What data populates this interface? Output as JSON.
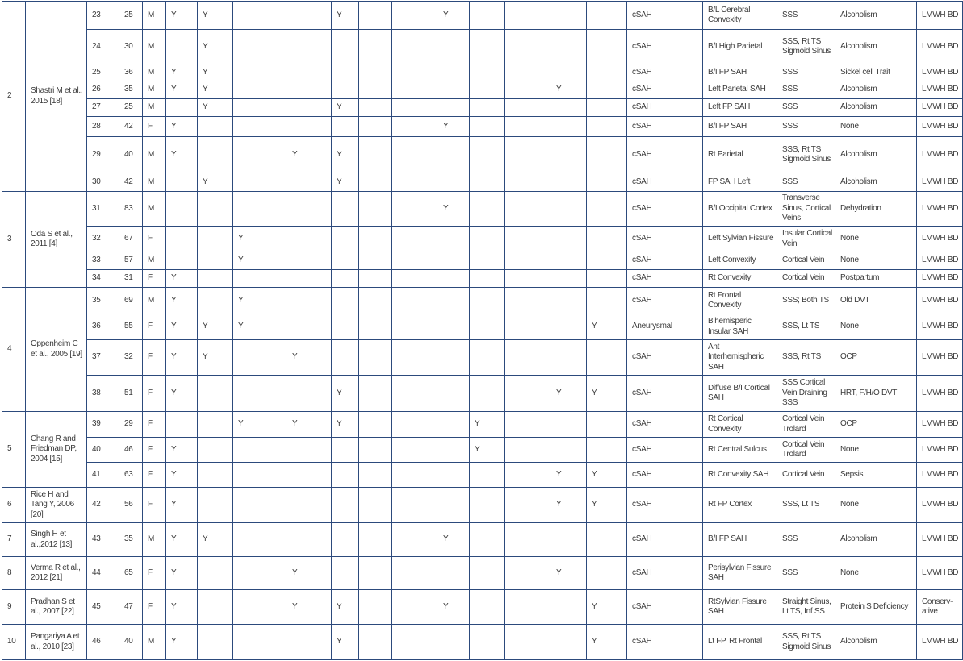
{
  "colors": {
    "border": "#2c4a7c",
    "text": "#3a3a3a"
  },
  "groups": [
    {
      "no": "2",
      "study": "Shastri M et al., 2015 [18]",
      "cases": [
        {
          "case": "23",
          "age": "25",
          "sex": "M",
          "marks": [
            "Y",
            "Y",
            "",
            "",
            "Y",
            "",
            "",
            "Y",
            "",
            "",
            "",
            ""
          ],
          "type": "cSAH",
          "location": "B/L Cerebral Convexity",
          "sinus": "SSS",
          "risk": "Alcoholism",
          "treatment": "LMWH BD"
        },
        {
          "case": "24",
          "age": "30",
          "sex": "M",
          "marks": [
            "",
            "Y",
            "",
            "",
            "",
            "",
            "",
            "",
            "",
            "",
            "",
            ""
          ],
          "type": "cSAH",
          "location": "B/I High Parietal",
          "sinus": "SSS, Rt TS Sigmoid Sinus",
          "risk": "Alcoholism",
          "treatment": "LMWH BD"
        },
        {
          "case": "25",
          "age": "36",
          "sex": "M",
          "marks": [
            "Y",
            "Y",
            "",
            "",
            "",
            "",
            "",
            "",
            "",
            "",
            "",
            ""
          ],
          "type": "cSAH",
          "location": "B/I FP SAH",
          "sinus": "SSS",
          "risk": "Sickel cell Trait",
          "treatment": "LMWH BD"
        },
        {
          "case": "26",
          "age": "35",
          "sex": "M",
          "marks": [
            "Y",
            "Y",
            "",
            "",
            "",
            "",
            "",
            "",
            "",
            "",
            "Y",
            ""
          ],
          "type": "cSAH",
          "location": "Left Parietal SAH",
          "sinus": "SSS",
          "risk": "Alcoholism",
          "treatment": "LMWH BD"
        },
        {
          "case": "27",
          "age": "25",
          "sex": "M",
          "marks": [
            "",
            "Y",
            "",
            "",
            "Y",
            "",
            "",
            "",
            "",
            "",
            "",
            ""
          ],
          "type": "cSAH",
          "location": "Left FP SAH",
          "sinus": "SSS",
          "risk": "Alcoholism",
          "treatment": "LMWH BD"
        },
        {
          "case": "28",
          "age": "42",
          "sex": "F",
          "marks": [
            "Y",
            "",
            "",
            "",
            "",
            "",
            "",
            "Y",
            "",
            "",
            "",
            ""
          ],
          "type": "cSAH",
          "location": "B/I FP SAH",
          "sinus": "SSS",
          "risk": "None",
          "treatment": "LMWH BD"
        },
        {
          "case": "29",
          "age": "40",
          "sex": "M",
          "marks": [
            "Y",
            "",
            "",
            "Y",
            "Y",
            "",
            "",
            "",
            "",
            "",
            "",
            ""
          ],
          "type": "cSAH",
          "location": "Rt Parietal",
          "sinus": "SSS, Rt TS Sigmoid Sinus",
          "risk": "Alcoholism",
          "treatment": "LMWH BD"
        },
        {
          "case": "30",
          "age": "42",
          "sex": "M",
          "marks": [
            "",
            "Y",
            "",
            "",
            "Y",
            "",
            "",
            "",
            "",
            "",
            "",
            ""
          ],
          "type": "cSAH",
          "location": "FP SAH Left",
          "sinus": "SSS",
          "risk": "Alcoholism",
          "treatment": "LMWH BD"
        }
      ]
    },
    {
      "no": "3",
      "study": "Oda S et al., 2011 [4]",
      "cases": [
        {
          "case": "31",
          "age": "83",
          "sex": "M",
          "marks": [
            "",
            "",
            "",
            "",
            "",
            "",
            "",
            "Y",
            "",
            "",
            "",
            ""
          ],
          "type": "cSAH",
          "location": "B/I Occipital Cortex",
          "sinus": "Transverse Sinus, Cortical Veins",
          "risk": "Dehydration",
          "treatment": "LMWH BD"
        },
        {
          "case": "32",
          "age": "67",
          "sex": "F",
          "marks": [
            "",
            "",
            "Y",
            "",
            "",
            "",
            "",
            "",
            "",
            "",
            "",
            ""
          ],
          "type": "cSAH",
          "location": "Left Sylvian Fissure",
          "sinus": "Insular Cortical Vein",
          "risk": "None",
          "treatment": "LMWH BD"
        },
        {
          "case": "33",
          "age": "57",
          "sex": "M",
          "marks": [
            "",
            "",
            "Y",
            "",
            "",
            "",
            "",
            "",
            "",
            "",
            "",
            ""
          ],
          "type": "cSAH",
          "location": "Left Convexity",
          "sinus": "Cortical Vein",
          "risk": "None",
          "treatment": "LMWH BD"
        },
        {
          "case": "34",
          "age": "31",
          "sex": "F",
          "marks": [
            "Y",
            "",
            "",
            "",
            "",
            "",
            "",
            "",
            "",
            "",
            "",
            ""
          ],
          "type": "cSAH",
          "location": "Rt Convexity",
          "sinus": "Cortical Vein",
          "risk": "Postpartum",
          "treatment": "LMWH BD"
        }
      ]
    },
    {
      "no": "4",
      "study": "Oppenheim C et al., 2005 [19]",
      "cases": [
        {
          "case": "35",
          "age": "69",
          "sex": "M",
          "marks": [
            "Y",
            "",
            "Y",
            "",
            "",
            "",
            "",
            "",
            "",
            "",
            "",
            ""
          ],
          "type": "cSAH",
          "location": "Rt Frontal Convexity",
          "sinus": "SSS; Both TS",
          "risk": "Old DVT",
          "treatment": "LMWH BD"
        },
        {
          "case": "36",
          "age": "55",
          "sex": "F",
          "marks": [
            "Y",
            "Y",
            "Y",
            "",
            "",
            "",
            "",
            "",
            "",
            "",
            "",
            "Y"
          ],
          "type": "Aneurysmal",
          "location": "Bihemisperic Insular SAH",
          "sinus": "SSS, Lt TS",
          "risk": "None",
          "treatment": "LMWH BD"
        },
        {
          "case": "37",
          "age": "32",
          "sex": "F",
          "marks": [
            "Y",
            "Y",
            "",
            "Y",
            "",
            "",
            "",
            "",
            "",
            "",
            "",
            ""
          ],
          "type": "cSAH",
          "location": "Ant Interhemispheric SAH",
          "sinus": "SSS, Rt TS",
          "risk": "OCP",
          "treatment": "LMWH BD"
        },
        {
          "case": "38",
          "age": "51",
          "sex": "F",
          "marks": [
            "Y",
            "",
            "",
            "",
            "Y",
            "",
            "",
            "",
            "",
            "",
            "Y",
            "Y"
          ],
          "type": "cSAH",
          "location": "Diffuse B/I Cortical SAH",
          "sinus": "SSS Cortical Vein Draining SSS",
          "risk": "HRT, F/H/O DVT",
          "treatment": "LMWH BD"
        }
      ]
    },
    {
      "no": "5",
      "study": "Chang R and Friedman DP, 2004 [15]",
      "cases": [
        {
          "case": "39",
          "age": "29",
          "sex": "F",
          "marks": [
            "",
            "",
            "Y",
            "Y",
            "Y",
            "",
            "",
            "",
            "Y",
            "",
            "",
            ""
          ],
          "type": "cSAH",
          "location": "Rt Cortical Convexity",
          "sinus": "Cortical Vein Trolard",
          "risk": "OCP",
          "treatment": "LMWH BD"
        },
        {
          "case": "40",
          "age": "46",
          "sex": "F",
          "marks": [
            "Y",
            "",
            "",
            "",
            "",
            "",
            "",
            "",
            "Y",
            "",
            "",
            ""
          ],
          "type": "cSAH",
          "location": "Rt Central Sulcus",
          "sinus": "Cortical Vein Trolard",
          "risk": "None",
          "treatment": "LMWH BD"
        },
        {
          "case": "41",
          "age": "63",
          "sex": "F",
          "marks": [
            "Y",
            "",
            "",
            "",
            "",
            "",
            "",
            "",
            "",
            "",
            "Y",
            "Y"
          ],
          "type": "cSAH",
          "location": "Rt Convexity SAH",
          "sinus": "Cortical Vein",
          "risk": "Sepsis",
          "treatment": "LMWH BD"
        }
      ]
    },
    {
      "no": "6",
      "study": "Rice H and Tang Y, 2006 [20]",
      "cases": [
        {
          "case": "42",
          "age": "56",
          "sex": "F",
          "marks": [
            "Y",
            "",
            "",
            "",
            "",
            "",
            "",
            "",
            "",
            "",
            "Y",
            "Y"
          ],
          "type": "cSAH",
          "location": "Rt FP Cortex",
          "sinus": "SSS, Lt TS",
          "risk": "None",
          "treatment": "LMWH BD"
        }
      ]
    },
    {
      "no": "7",
      "study": "Singh H et al.,2012 [13]",
      "cases": [
        {
          "case": "43",
          "age": "35",
          "sex": "M",
          "marks": [
            "Y",
            "Y",
            "",
            "",
            "",
            "",
            "",
            "Y",
            "",
            "",
            "",
            ""
          ],
          "type": "cSAH",
          "location": "B/I FP SAH",
          "sinus": "SSS",
          "risk": "Alcoholism",
          "treatment": "LMWH BD"
        }
      ]
    },
    {
      "no": "8",
      "study": "Verma R et al., 2012 [21]",
      "cases": [
        {
          "case": "44",
          "age": "65",
          "sex": "F",
          "marks": [
            "Y",
            "",
            "",
            "Y",
            "",
            "",
            "",
            "",
            "",
            "",
            "Y",
            ""
          ],
          "type": "cSAH",
          "location": "Perisylvian Fissure SAH",
          "sinus": "SSS",
          "risk": "None",
          "treatment": "LMWH BD"
        }
      ]
    },
    {
      "no": "9",
      "study": "Pradhan S et al., 2007 [22]",
      "cases": [
        {
          "case": "45",
          "age": "47",
          "sex": "F",
          "marks": [
            "Y",
            "",
            "",
            "Y",
            "Y",
            "",
            "",
            "Y",
            "",
            "",
            "",
            "Y"
          ],
          "type": "cSAH",
          "location": "RtSylvian Fissure SAH",
          "sinus": "Straight Sinus, Lt TS, Inf SS",
          "risk": "Protein S Deficiency",
          "treatment": "Conserv-ative"
        }
      ]
    },
    {
      "no": "10",
      "study": "Pangariya A et al., 2010 [23]",
      "cases": [
        {
          "case": "46",
          "age": "40",
          "sex": "M",
          "marks": [
            "Y",
            "",
            "",
            "",
            "Y",
            "",
            "",
            "",
            "",
            "",
            "",
            "Y"
          ],
          "type": "cSAH",
          "location": "Lt FP, Rt Frontal",
          "sinus": "SSS, Rt TS Sigmoid Sinus",
          "risk": "Alcoholism",
          "treatment": "LMWH BD"
        }
      ]
    }
  ]
}
